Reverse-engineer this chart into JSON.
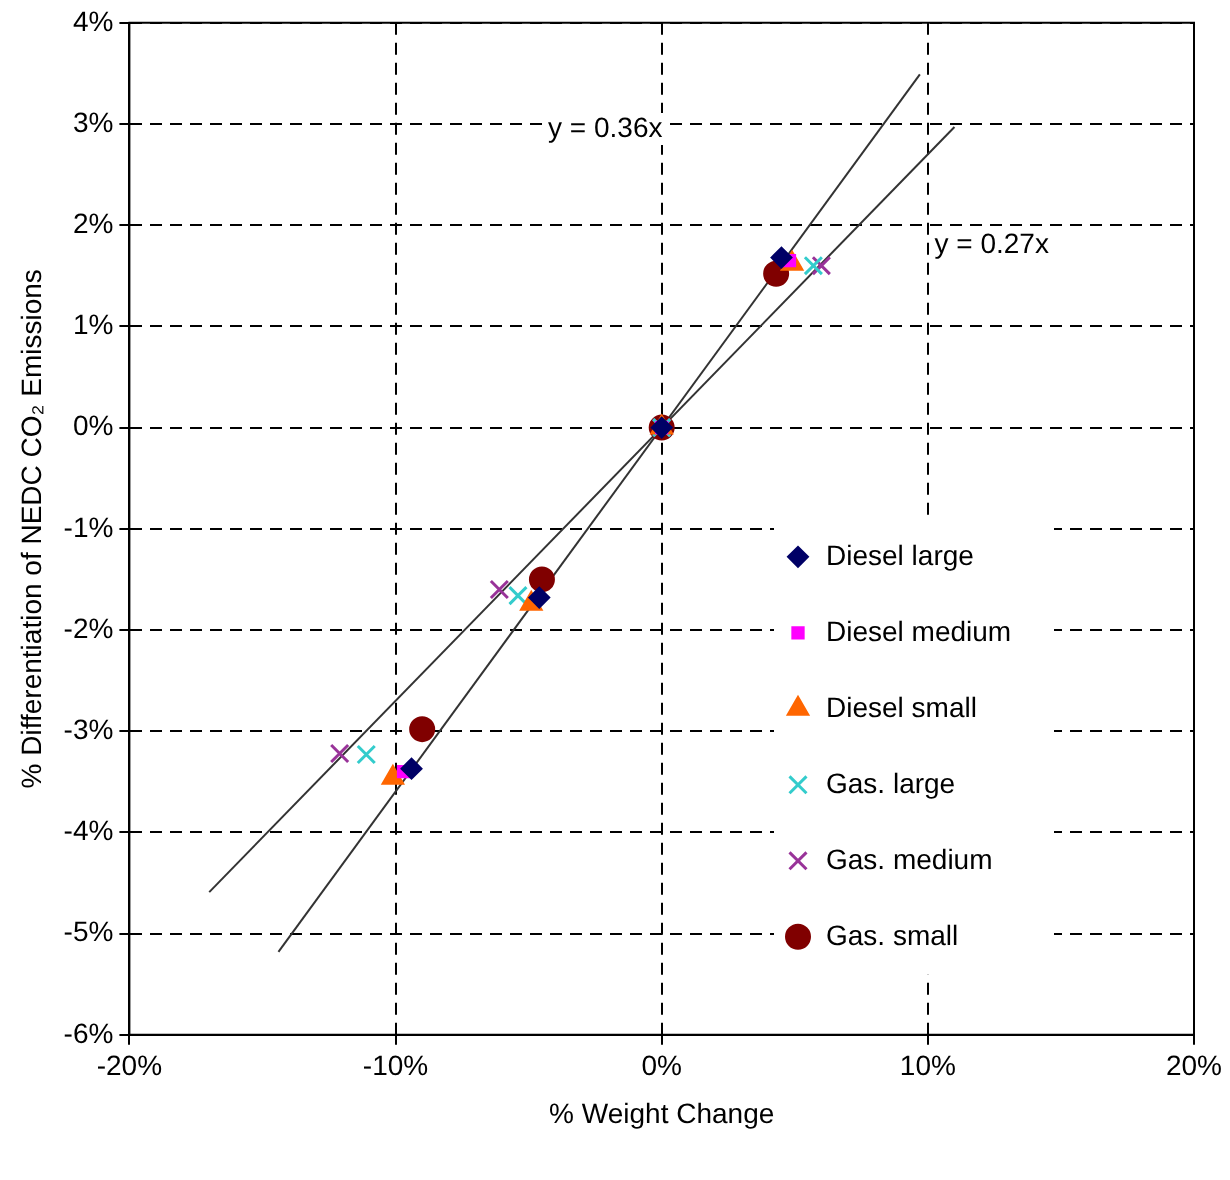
{
  "chart_data": {
    "type": "scatter",
    "xlabel": "% Weight Change",
    "ylabel": "% Differentiation of NEDC CO₂ Emissions",
    "xlim": [
      -20,
      20
    ],
    "xticks": [
      {
        "value": -20,
        "label": "-20%"
      },
      {
        "value": -10,
        "label": "-10%"
      },
      {
        "value": 0,
        "label": "0%"
      },
      {
        "value": 10,
        "label": "10%"
      },
      {
        "value": 20,
        "label": "20%"
      }
    ],
    "ylim": [
      -6,
      4
    ],
    "yticks": [
      {
        "value": -6,
        "label": "-6%"
      },
      {
        "value": -5,
        "label": "-5%"
      },
      {
        "value": -4,
        "label": "-4%"
      },
      {
        "value": -3,
        "label": "-3%"
      },
      {
        "value": -2,
        "label": "-2%"
      },
      {
        "value": -1,
        "label": "-1%"
      },
      {
        "value": 0,
        "label": "0%"
      },
      {
        "value": 1,
        "label": "1%"
      },
      {
        "value": 2,
        "label": "2%"
      },
      {
        "value": 3,
        "label": "3%"
      },
      {
        "value": 4,
        "label": "4%"
      }
    ],
    "grid": true,
    "legend": "bottom right",
    "series": [
      {
        "type": "line",
        "color": "#333333",
        "marker": "none",
        "x": [
          -14.4,
          9.7
        ],
        "values": [
          -5.18,
          3.49
        ]
      },
      {
        "type": "line",
        "color": "#333333",
        "marker": "none",
        "x": [
          -17,
          11
        ],
        "values": [
          -4.59,
          2.97
        ]
      },
      {
        "name": "Diesel large",
        "color": "#000066",
        "marker": "diamond",
        "x": [
          -9.4,
          -4.6,
          0,
          4.5
        ],
        "values": [
          -3.37,
          -1.68,
          0,
          1.68
        ]
      },
      {
        "name": "Diesel medium",
        "color": "#ff00ff",
        "marker": "square",
        "x": [
          -9.7,
          -4.8,
          0,
          4.8
        ],
        "values": [
          -3.4,
          null,
          0,
          1.65
        ]
      },
      {
        "name": "Diesel small",
        "color": "#ff6600",
        "marker": "triangle",
        "x": [
          -10.1,
          -4.9,
          0,
          4.9
        ],
        "values": [
          -3.46,
          -1.74,
          0,
          1.62
        ]
      },
      {
        "name": "Gas. large",
        "color": "#33cccc",
        "marker": "cross",
        "x": [
          -11.1,
          -5.4,
          0,
          5.7
        ],
        "values": [
          -3.23,
          -1.66,
          0,
          1.6
        ]
      },
      {
        "name": "Gas. medium",
        "color": "#993399",
        "marker": "cross",
        "x": [
          -12.1,
          -6.1,
          0,
          6
        ],
        "values": [
          -3.22,
          -1.6,
          0,
          1.6
        ]
      },
      {
        "name": "Gas. small",
        "color": "#800000",
        "marker": "circle",
        "x": [
          -9,
          -4.5,
          0,
          4.3
        ],
        "values": [
          -2.98,
          -1.5,
          0,
          1.52
        ]
      }
    ],
    "annotations": [
      "y = 0.36x",
      "y = 0.27x"
    ]
  }
}
